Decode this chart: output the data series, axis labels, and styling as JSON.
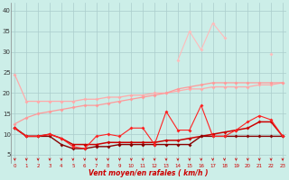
{
  "x": [
    0,
    1,
    2,
    3,
    4,
    5,
    6,
    7,
    8,
    9,
    10,
    11,
    12,
    13,
    14,
    15,
    16,
    17,
    18,
    19,
    20,
    21,
    22,
    23
  ],
  "background_color": "#cceee8",
  "grid_color": "#aacccc",
  "xlabel": "Vent moyen/en rafales ( km/h )",
  "xlabel_color": "#cc0000",
  "yticks": [
    5,
    10,
    15,
    20,
    25,
    30,
    35,
    40
  ],
  "ylim": [
    3,
    42
  ],
  "xlim": [
    -0.3,
    23.3
  ],
  "line_light_pink_color": "#ffaaaa",
  "line_light_pink": [
    24.5,
    18.0,
    18.0,
    18.0,
    18.0,
    18.0,
    18.5,
    18.5,
    19.0,
    19.0,
    19.5,
    19.5,
    20.0,
    20.0,
    20.5,
    21.0,
    21.0,
    21.5,
    21.5,
    21.5,
    21.5,
    22.0,
    22.0,
    22.5
  ],
  "line_med_pink_color": "#ff9999",
  "line_med_pink": [
    12.5,
    14.0,
    15.0,
    15.5,
    16.0,
    16.5,
    17.0,
    17.0,
    17.5,
    18.0,
    18.5,
    19.0,
    19.5,
    20.0,
    21.0,
    21.5,
    22.0,
    22.5,
    22.5,
    22.5,
    22.5,
    22.5,
    22.5,
    22.5
  ],
  "line_spiky_pink_color": "#ffbbbb",
  "line_spiky_pink": [
    null,
    null,
    null,
    null,
    null,
    null,
    null,
    null,
    null,
    null,
    null,
    null,
    null,
    null,
    28.0,
    35.0,
    30.5,
    37.0,
    33.5,
    null,
    null,
    null,
    29.5,
    null
  ],
  "line_dark_red1_color": "#cc0000",
  "line_dark_red1": [
    11.5,
    9.5,
    9.5,
    10.0,
    9.0,
    7.5,
    7.5,
    7.5,
    8.0,
    8.0,
    8.0,
    8.0,
    8.0,
    8.5,
    8.5,
    9.0,
    9.5,
    10.0,
    10.5,
    11.0,
    11.5,
    13.0,
    13.0,
    9.5
  ],
  "line_dark_red2_color": "#880000",
  "line_dark_red2": [
    11.5,
    9.5,
    9.5,
    9.5,
    7.5,
    6.5,
    6.5,
    7.0,
    7.0,
    7.5,
    7.5,
    7.5,
    7.5,
    7.5,
    7.5,
    7.5,
    9.5,
    9.5,
    9.5,
    9.5,
    9.5,
    9.5,
    9.5,
    9.5
  ],
  "line_bright_red_color": "#ff2222",
  "line_bright_red": [
    11.5,
    9.5,
    9.5,
    10.0,
    9.0,
    7.0,
    6.5,
    9.5,
    10.0,
    9.5,
    11.5,
    11.5,
    7.5,
    15.5,
    11.0,
    11.0,
    17.0,
    9.5,
    9.5,
    11.0,
    13.0,
    14.5,
    13.5,
    9.5
  ],
  "arrow_color": "#cc0000"
}
